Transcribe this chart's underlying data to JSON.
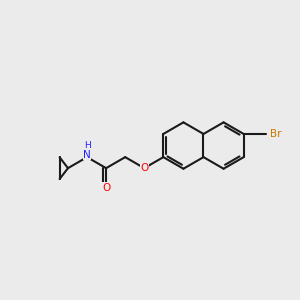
{
  "background_color": "#ebebeb",
  "bond_color": "#1a1a1a",
  "atom_colors": {
    "O": "#ff0000",
    "N": "#2020ff",
    "Br": "#cc7700",
    "H": "#2020ff"
  },
  "figsize": [
    3.0,
    3.0
  ],
  "dpi": 100,
  "xl": 0,
  "xr": 10,
  "yb": 0,
  "yt": 10
}
